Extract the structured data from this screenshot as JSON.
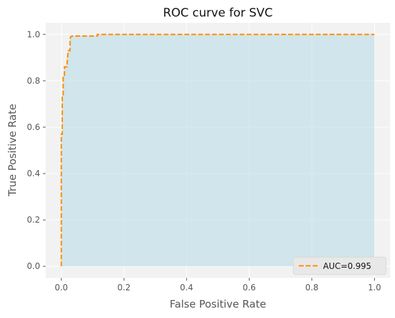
{
  "chart_data": {
    "type": "line",
    "title": "ROC curve for SVC",
    "xlabel": "False Positive Rate",
    "ylabel": "True Positive Rate",
    "xlim": [
      -0.05,
      1.05
    ],
    "ylim": [
      -0.05,
      1.05
    ],
    "x_ticks": [
      0.0,
      0.2,
      0.4,
      0.6,
      0.8,
      1.0
    ],
    "x_tick_labels": [
      "0.0",
      "0.2",
      "0.4",
      "0.6",
      "0.8",
      "1.0"
    ],
    "y_ticks": [
      0.0,
      0.2,
      0.4,
      0.6,
      0.8,
      1.0
    ],
    "y_tick_labels": [
      "0.0",
      "0.2",
      "0.4",
      "0.6",
      "0.8",
      "1.0"
    ],
    "grid": true,
    "legend_position": "bottom-right",
    "series": [
      {
        "name": "AUC=0.995",
        "style": "dashed",
        "color": "#ff8c00",
        "fill_color": "#add8e6",
        "x": [
          0.0,
          0.0,
          0.003,
          0.003,
          0.006,
          0.006,
          0.01,
          0.01,
          0.018,
          0.018,
          0.022,
          0.028,
          0.028,
          0.03,
          0.035,
          0.11,
          0.115,
          0.115,
          1.0
        ],
        "y": [
          0.0,
          0.57,
          0.57,
          0.74,
          0.74,
          0.82,
          0.82,
          0.86,
          0.86,
          0.87,
          0.93,
          0.93,
          0.98,
          0.99,
          0.993,
          0.993,
          0.993,
          1.0,
          1.0
        ]
      }
    ]
  }
}
